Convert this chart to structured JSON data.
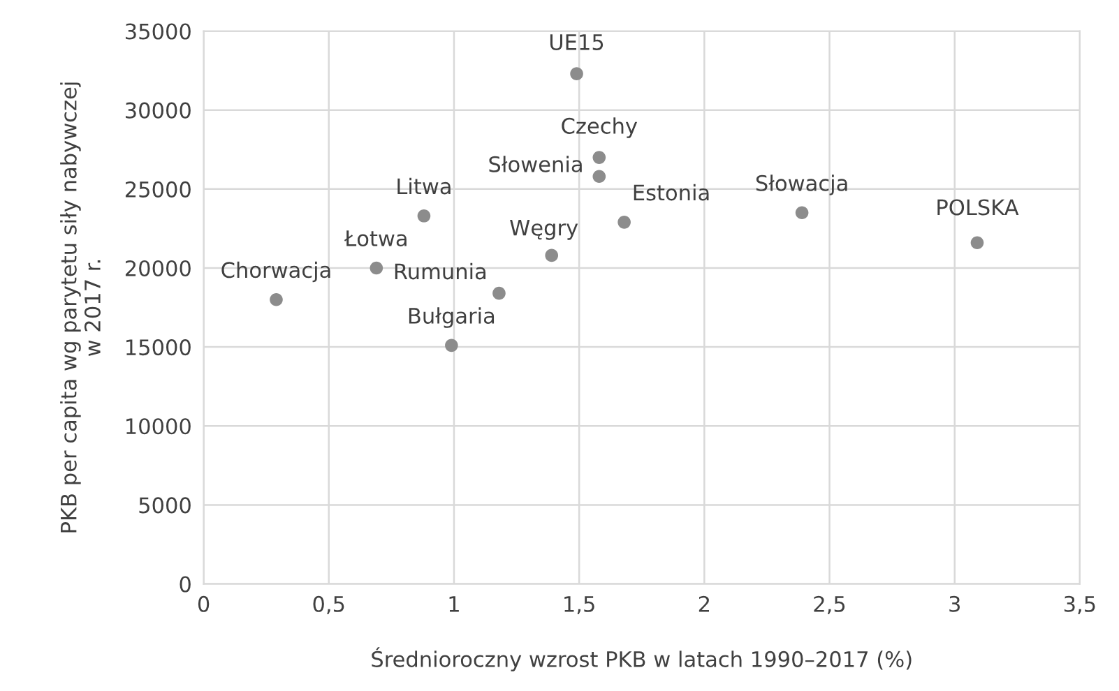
{
  "chart_data": {
    "type": "scatter",
    "xlabel": "Średnioroczny wzrost PKB w latach 1990–2017 (%)",
    "ylabel": "PKB per capita wg parytetu siły nabywczej\nw 2017 r.",
    "x": [
      1.49,
      1.58,
      1.58,
      1.68,
      2.39,
      3.09,
      0.88,
      0.69,
      0.29,
      1.39,
      1.18,
      0.99
    ],
    "values": [
      32300,
      27000,
      25800,
      22900,
      23500,
      21600,
      23300,
      20000,
      18000,
      20800,
      18400,
      15100
    ],
    "color": "#8c8c8c",
    "marker": "circle",
    "annotations": [
      {
        "text": "UE15",
        "x": 1.49,
        "y": 32300
      },
      {
        "text": "Czechy",
        "x": 1.58,
        "y": 27000
      },
      {
        "text": "Słowenia",
        "x": 1.58,
        "y": 25800
      },
      {
        "text": "Estonia",
        "x": 1.68,
        "y": 22900
      },
      {
        "text": "Słowacja",
        "x": 2.39,
        "y": 23500
      },
      {
        "text": "POLSKA",
        "x": 3.09,
        "y": 21600
      },
      {
        "text": "Litwa",
        "x": 0.88,
        "y": 23300
      },
      {
        "text": "Łotwa",
        "x": 0.69,
        "y": 20000
      },
      {
        "text": "Chorwacja",
        "x": 0.29,
        "y": 18000
      },
      {
        "text": "Węgry",
        "x": 1.39,
        "y": 20800
      },
      {
        "text": "Rumunia",
        "x": 1.18,
        "y": 18400
      },
      {
        "text": "Bułgaria",
        "x": 0.99,
        "y": 15100
      }
    ],
    "xlim": [
      0,
      3.5
    ],
    "xticks": [
      0,
      {
        "value": 0.5,
        "label": "0,5"
      },
      1,
      {
        "value": 1.5,
        "label": "1,5"
      },
      2,
      {
        "value": 2.5,
        "label": "2,5"
      },
      3,
      {
        "value": 3.5,
        "label": "3,5"
      }
    ],
    "ylim": [
      0,
      35000
    ],
    "yticks": [
      0,
      5000,
      10000,
      15000,
      20000,
      25000,
      30000,
      35000
    ],
    "grid": true
  }
}
